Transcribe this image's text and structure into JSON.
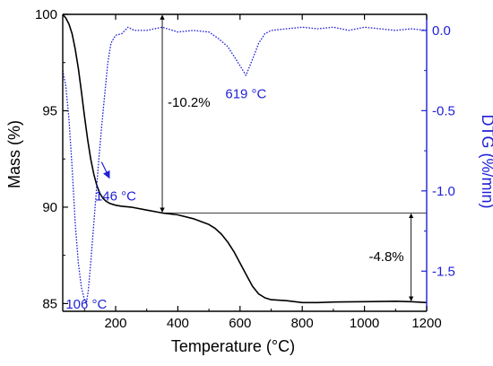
{
  "chart_data": {
    "type": "line",
    "xlabel": "Temperature (°C)",
    "ylabel_left": "Mass (%)",
    "ylabel_right": "DTG (%/min)",
    "xlim": [
      30,
      1200
    ],
    "ylim_left": [
      84.6,
      100
    ],
    "ylim_right": [
      -1.75,
      0.1
    ],
    "x_ticks": [
      200,
      400,
      600,
      800,
      1000,
      1200
    ],
    "y_left_ticks": [
      85,
      90,
      95,
      100
    ],
    "y_right_ticks": [
      0.0,
      -0.5,
      -1.0,
      -1.5
    ],
    "x_tick_labels": [
      "200",
      "400",
      "600",
      "800",
      "1000",
      "1200"
    ],
    "y_left_tick_labels": [
      "85",
      "90",
      "95",
      "100"
    ],
    "y_right_tick_labels": [
      "0.0",
      "-0.5",
      "-1.0",
      "-1.5"
    ],
    "grid": false,
    "colors": {
      "mass": "#000000",
      "dtg": "#1f1fd6",
      "axis_right": "#1f1fd6"
    },
    "series": [
      {
        "axis": "left",
        "style": "solid",
        "x": [
          30,
          40,
          50,
          60,
          70,
          80,
          90,
          100,
          110,
          120,
          130,
          140,
          150,
          160,
          170,
          180,
          200,
          220,
          250,
          300,
          350,
          400,
          450,
          500,
          520,
          540,
          560,
          580,
          600,
          620,
          640,
          660,
          680,
          700,
          750,
          800,
          850,
          900,
          1000,
          1100,
          1150,
          1200
        ],
        "y": [
          100,
          99.8,
          99.5,
          99.0,
          98.2,
          97.2,
          96.0,
          94.7,
          93.5,
          92.5,
          91.7,
          91.1,
          90.7,
          90.45,
          90.3,
          90.2,
          90.1,
          90.05,
          90.0,
          89.85,
          89.7,
          89.6,
          89.4,
          89.1,
          88.9,
          88.6,
          88.2,
          87.7,
          87.1,
          86.5,
          85.9,
          85.5,
          85.3,
          85.2,
          85.15,
          85.05,
          85.05,
          85.08,
          85.1,
          85.12,
          85.1,
          85.05
        ]
      },
      {
        "axis": "right",
        "style": "dotted",
        "x": [
          30,
          40,
          50,
          60,
          70,
          80,
          90,
          100,
          106,
          112,
          120,
          130,
          140,
          146,
          155,
          165,
          175,
          185,
          200,
          220,
          240,
          260,
          300,
          350,
          400,
          450,
          500,
          530,
          560,
          580,
          600,
          619,
          640,
          660,
          680,
          700,
          750,
          800,
          850,
          900,
          950,
          1000,
          1050,
          1100,
          1150,
          1200
        ],
        "y": [
          -0.25,
          -0.35,
          -0.55,
          -0.85,
          -1.2,
          -1.45,
          -1.6,
          -1.68,
          -1.7,
          -1.62,
          -1.45,
          -1.2,
          -0.95,
          -0.8,
          -0.6,
          -0.4,
          -0.2,
          -0.08,
          -0.03,
          -0.02,
          0.02,
          0.0,
          0.0,
          0.02,
          -0.01,
          0.0,
          -0.01,
          -0.05,
          -0.1,
          -0.16,
          -0.22,
          -0.28,
          -0.18,
          -0.08,
          -0.02,
          0.0,
          0.01,
          0.02,
          0.01,
          0.02,
          0.0,
          0.02,
          0.01,
          0.0,
          0.01,
          0.0
        ]
      }
    ],
    "annotations": [
      {
        "text": "619 °C",
        "color": "#1f1fd6"
      },
      {
        "text": "146 °C",
        "color": "#1f1fd6"
      },
      {
        "text": "106 °C",
        "color": "#1f1fd6"
      },
      {
        "text": "-10.2%",
        "color": "#000000"
      },
      {
        "text": "-4.8%",
        "color": "#000000"
      }
    ]
  }
}
